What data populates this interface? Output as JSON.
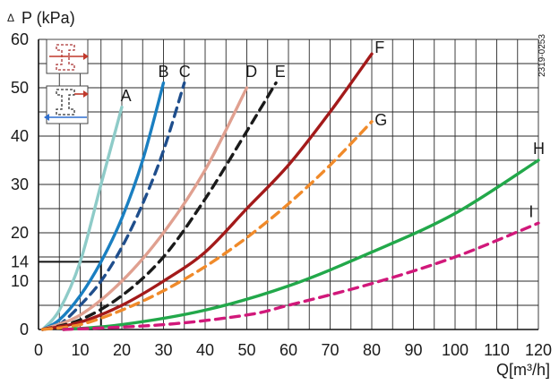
{
  "chart_data": {
    "type": "line",
    "ylabel": "P (kPa)",
    "ylabel_symbol": "Δ",
    "xlabel": "Q[m³/h]",
    "doc_id": "2319-0253",
    "xlim": [
      0,
      120
    ],
    "ylim": [
      0,
      60
    ],
    "x_ticks": [
      0,
      10,
      20,
      30,
      40,
      50,
      60,
      70,
      80,
      90,
      100,
      110,
      120
    ],
    "y_ticks": [
      0,
      10,
      14,
      20,
      30,
      40,
      50,
      60
    ],
    "grid": true,
    "reference_line": {
      "x": 15,
      "y": 14
    },
    "series": [
      {
        "name": "A",
        "color": "#8ecbc8",
        "dashed": false,
        "points": [
          [
            1,
            0
          ],
          [
            5,
            4
          ],
          [
            10,
            14
          ],
          [
            15,
            30
          ],
          [
            20,
            46
          ]
        ]
      },
      {
        "name": "B",
        "color": "#1a7fc1",
        "dashed": false,
        "points": [
          [
            1,
            0
          ],
          [
            5,
            2
          ],
          [
            10,
            7
          ],
          [
            15,
            14
          ],
          [
            20,
            23
          ],
          [
            25,
            35
          ],
          [
            30,
            51
          ]
        ]
      },
      {
        "name": "C",
        "color": "#1f4e8c",
        "dashed": true,
        "points": [
          [
            1,
            0
          ],
          [
            5,
            1
          ],
          [
            10,
            5
          ],
          [
            15,
            10
          ],
          [
            20,
            17
          ],
          [
            25,
            26
          ],
          [
            30,
            37
          ],
          [
            35,
            51
          ]
        ]
      },
      {
        "name": "D",
        "color": "#e0a090",
        "dashed": false,
        "points": [
          [
            1,
            0
          ],
          [
            10,
            3
          ],
          [
            20,
            10
          ],
          [
            30,
            20
          ],
          [
            40,
            33
          ],
          [
            50,
            50
          ]
        ]
      },
      {
        "name": "E",
        "color": "#1a1a1a",
        "dashed": true,
        "points": [
          [
            1,
            0
          ],
          [
            10,
            2
          ],
          [
            20,
            7
          ],
          [
            30,
            15
          ],
          [
            40,
            27
          ],
          [
            50,
            41
          ],
          [
            57,
            51
          ]
        ]
      },
      {
        "name": "F",
        "color": "#a31a1a",
        "dashed": false,
        "points": [
          [
            1,
            0
          ],
          [
            10,
            1.5
          ],
          [
            20,
            5
          ],
          [
            30,
            10
          ],
          [
            40,
            16
          ],
          [
            50,
            25
          ],
          [
            60,
            34
          ],
          [
            70,
            45
          ],
          [
            80,
            57
          ]
        ]
      },
      {
        "name": "G",
        "color": "#f08a2a",
        "dashed": true,
        "points": [
          [
            1,
            0
          ],
          [
            10,
            1
          ],
          [
            20,
            4
          ],
          [
            30,
            8
          ],
          [
            40,
            13
          ],
          [
            50,
            19
          ],
          [
            60,
            26
          ],
          [
            70,
            34
          ],
          [
            80,
            43
          ]
        ]
      },
      {
        "name": "H",
        "color": "#22a84a",
        "dashed": false,
        "points": [
          [
            6,
            0
          ],
          [
            20,
            1
          ],
          [
            40,
            4
          ],
          [
            60,
            9
          ],
          [
            80,
            16
          ],
          [
            100,
            24
          ],
          [
            120,
            35
          ]
        ]
      },
      {
        "name": "I",
        "color": "#d1187a",
        "dashed": true,
        "points": [
          [
            6,
            0
          ],
          [
            30,
            1
          ],
          [
            50,
            3
          ],
          [
            60,
            5
          ],
          [
            80,
            9.5
          ],
          [
            100,
            15
          ],
          [
            120,
            22
          ]
        ]
      }
    ],
    "label_positions": {
      "A": [
        21,
        48
      ],
      "B": [
        30,
        53
      ],
      "C": [
        35,
        53
      ],
      "D": [
        51,
        53
      ],
      "E": [
        58,
        53
      ],
      "F": [
        82,
        58
      ],
      "G": [
        82,
        43
      ],
      "H": [
        120,
        37
      ],
      "I": [
        119,
        24
      ]
    },
    "legend": {
      "icons": [
        {
          "name": "straight-flow-icon",
          "arrow_color": "#c0392b",
          "arrow": "right"
        },
        {
          "name": "split-flow-icon",
          "arrow_color": "#2f6fcf",
          "arrow": "left"
        }
      ]
    }
  }
}
